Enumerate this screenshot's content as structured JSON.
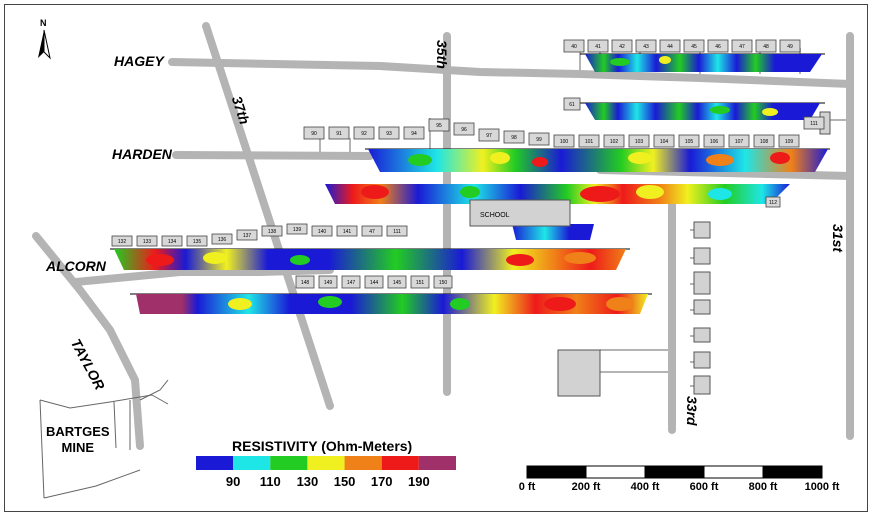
{
  "streets": {
    "hagey": "HAGEY",
    "harden": "HARDEN",
    "alcorn": "ALCORN",
    "taylor": "TAYLOR",
    "s35th": "35th",
    "s37th": "37th",
    "s33rd": "33rd",
    "s31st": "31st"
  },
  "north_label": "N",
  "school_label": "SCHOOL",
  "mine_label_line1": "BARTGES",
  "mine_label_line2": "MINE",
  "legend": {
    "title": "RESISTIVITY (Ohm-Meters)",
    "ticks": [
      "90",
      "110",
      "130",
      "150",
      "170",
      "190"
    ],
    "colors": [
      "#1a1ad6",
      "#1ee6e6",
      "#22cc22",
      "#f0f020",
      "#f08018",
      "#ee1a1a",
      "#a0306a"
    ]
  },
  "scale_bar": {
    "labels": [
      "0 ft",
      "200 ft",
      "400 ft",
      "600 ft",
      "800 ft",
      "1000 ft"
    ]
  },
  "lot_numbers": {
    "row_hagey": [
      "40",
      "41",
      "42",
      "43",
      "44",
      "45",
      "46",
      "47",
      "48",
      "49"
    ],
    "row_hagey2": [
      "61"
    ],
    "row_harden": [
      "90",
      "91",
      "92",
      "93",
      "94",
      "95",
      "96",
      "97",
      "98",
      "99",
      "100",
      "101",
      "102",
      "103",
      "104",
      "105",
      "106",
      "107",
      "108",
      "109",
      "111"
    ],
    "row_mid": [
      "112"
    ],
    "row_alcorn": [
      "132",
      "133",
      "134",
      "135",
      "136",
      "137",
      "138",
      "139",
      "140",
      "141",
      "47",
      "111"
    ],
    "row_alcorn2": [
      "148",
      "149",
      "147",
      "144",
      "145",
      "151",
      "150"
    ]
  }
}
